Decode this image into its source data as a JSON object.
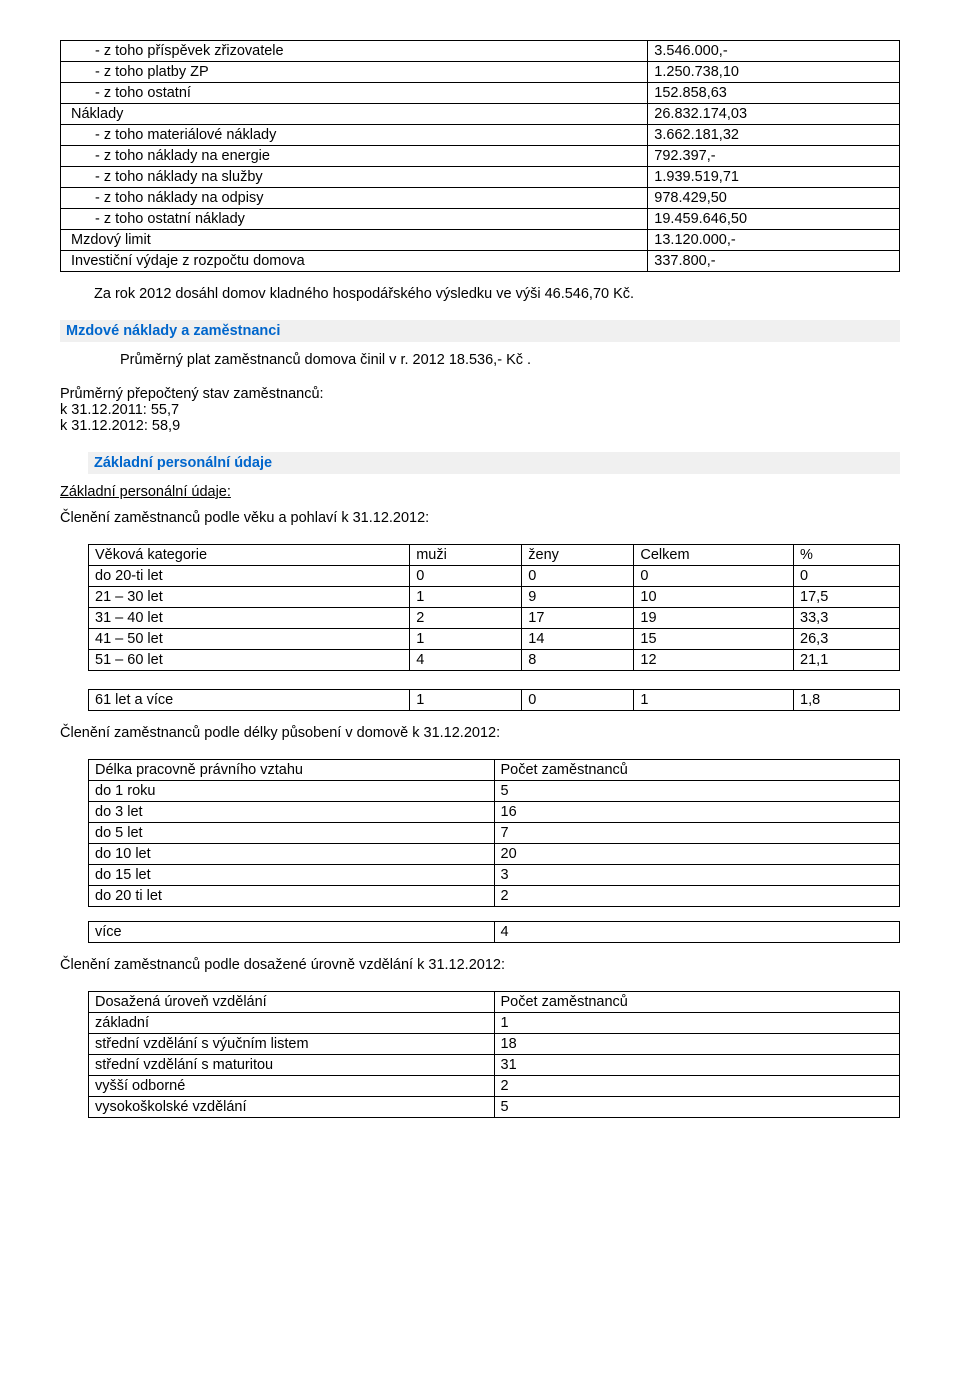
{
  "table1": {
    "rows": [
      {
        "label": "- z toho příspěvek zřizovatele",
        "value": "3.546.000,-"
      },
      {
        "label": "- z toho platby ZP",
        "value": "1.250.738,10"
      },
      {
        "label": "- z toho ostatní",
        "value": "152.858,63"
      },
      {
        "label": "Náklady",
        "value": "26.832.174,03"
      },
      {
        "label": "- z toho materiálové náklady",
        "value": "3.662.181,32"
      },
      {
        "label": "- z toho náklady na energie",
        "value": "792.397,-"
      },
      {
        "label": "- z toho náklady na služby",
        "value": "1.939.519,71"
      },
      {
        "label": "- z toho náklady na odpisy",
        "value": "978.429,50"
      },
      {
        "label": "- z toho ostatní náklady",
        "value": "19.459.646,50"
      },
      {
        "label": "Mzdový limit",
        "value": "13.120.000,-"
      },
      {
        "label": "Investiční výdaje z rozpočtu domova",
        "value": "337.800,-"
      }
    ]
  },
  "summary_text": "Za rok 2012 dosáhl domov kladného hospodářského výsledku ve výši 46.546,70 Kč.",
  "section_wages": {
    "title": "Mzdové náklady a zaměstnanci",
    "avg_salary_text": "Průměrný plat  zaměstnanců domova činil v r. 2012 18.536,- Kč .",
    "avg_headcount_label": "Průměrný přepočtený stav zaměstnanců:",
    "line1": "k 31.12.2011: 55,7",
    "line2": "k 31.12.2012: 58,9"
  },
  "section_personnel": {
    "title": "Základní personální údaje",
    "subheading": "Základní personální údaje:"
  },
  "table_age": {
    "caption": "Členění zaměstnanců podle věku a pohlaví k 31.12.2012:",
    "headers": [
      "Věková kategorie",
      "muži",
      "ženy",
      "Celkem",
      "%"
    ],
    "rows": [
      [
        "do 20-ti let",
        "0",
        "0",
        "0",
        "0"
      ],
      [
        "21 – 30 let",
        "1",
        "9",
        "10",
        "17,5"
      ],
      [
        "31 – 40 let",
        "2",
        "17",
        "19",
        "33,3"
      ],
      [
        "41 – 50 let",
        "1",
        "14",
        "15",
        "26,3"
      ],
      [
        "51 – 60 let",
        "4",
        "8",
        "12",
        "21,1"
      ]
    ],
    "last_row": [
      "61 let a více",
      "1",
      "0",
      "1",
      "1,8"
    ]
  },
  "table_tenure": {
    "caption": "Členění zaměstnanců podle délky působení v domově k 31.12.2012:",
    "headers": [
      "Délka pracovně právního vztahu",
      "Počet zaměstnanců"
    ],
    "rows": [
      [
        "do 1 roku",
        "5"
      ],
      [
        "do 3 let",
        "16"
      ],
      [
        "do 5 let",
        "7"
      ],
      [
        "do 10 let",
        "20"
      ],
      [
        "do 15 let",
        "3"
      ],
      [
        "do 20 ti let",
        "2"
      ]
    ],
    "last_row": [
      "více",
      "4"
    ]
  },
  "table_edu": {
    "caption": "Členění zaměstnanců podle dosažené úrovně vzdělání k 31.12.2012:",
    "headers": [
      "Dosažená úroveň vzdělání",
      "Počet zaměstnanců"
    ],
    "rows": [
      [
        "základní",
        "1"
      ],
      [
        "střední vzdělání s výučním listem",
        "18"
      ],
      [
        "střední vzdělání s maturitou",
        "31"
      ],
      [
        "vyšší odborné",
        "2"
      ],
      [
        "vysokoškolské vzdělání",
        "5"
      ]
    ]
  }
}
